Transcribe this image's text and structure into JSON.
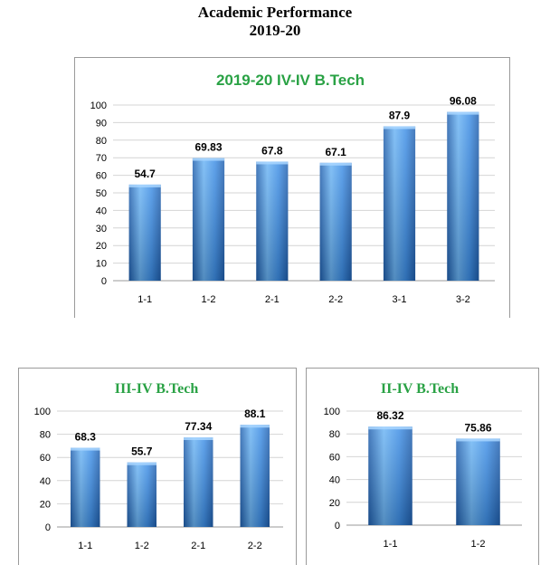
{
  "heading": {
    "line1": "Academic Performance",
    "line2": "2019-20"
  },
  "colors": {
    "bar_light": "#6ab4f5",
    "bar_mid": "#3d8ee6",
    "bar_dark": "#1f5fae",
    "title_green": "#2aa245",
    "grid": "#d4d4d4"
  },
  "chart_data": [
    {
      "type": "bar",
      "title": "2019-20 IV-IV B.Tech",
      "categories": [
        "1-1",
        "1-2",
        "2-1",
        "2-2",
        "3-1",
        "3-2"
      ],
      "values": [
        54.7,
        69.83,
        67.8,
        67.1,
        87.9,
        96.08
      ],
      "data_labels": [
        "54.7",
        "69.83",
        "67.8",
        "67.1",
        "87.9",
        "96.08"
      ],
      "ylim": [
        0,
        100
      ],
      "yticks": [
        0,
        10,
        20,
        30,
        40,
        50,
        60,
        70,
        80,
        90,
        100
      ],
      "grid": true,
      "legend": "none"
    },
    {
      "type": "bar",
      "title": "III-IV B.Tech",
      "categories": [
        "1-1",
        "1-2",
        "2-1",
        "2-2"
      ],
      "values": [
        68.3,
        55.7,
        77.34,
        88.1
      ],
      "data_labels": [
        "68.3",
        "55.7",
        "77.34",
        "88.1"
      ],
      "ylim": [
        0,
        100
      ],
      "yticks": [
        0,
        20,
        40,
        60,
        80,
        100
      ],
      "grid": true,
      "legend": "none"
    },
    {
      "type": "bar",
      "title": "II-IV B.Tech",
      "categories": [
        "1-1",
        "1-2"
      ],
      "values": [
        86.32,
        75.86
      ],
      "data_labels": [
        "86.32",
        "75.86"
      ],
      "ylim": [
        0,
        100
      ],
      "yticks": [
        0,
        20,
        40,
        60,
        80,
        100
      ],
      "grid": true,
      "legend": "none"
    }
  ]
}
